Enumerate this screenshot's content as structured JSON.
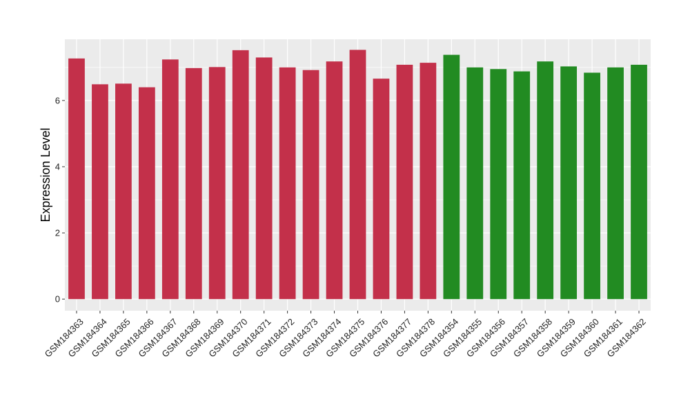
{
  "chart_data": {
    "type": "bar",
    "title": "",
    "xlabel": "",
    "ylabel": "Expression Level",
    "ylim": [
      -0.35,
      7.85
    ],
    "yticks": [
      0,
      2,
      4,
      6
    ],
    "grid": true,
    "legend": "none",
    "colors": {
      "group_a": "#C3304A",
      "group_b": "#228B22",
      "panel": "#EBEBEB",
      "gridline": "#FFFFFF"
    },
    "categories": [
      "GSM184363",
      "GSM184364",
      "GSM184365",
      "GSM184366",
      "GSM184367",
      "GSM184368",
      "GSM184369",
      "GSM184370",
      "GSM184371",
      "GSM184372",
      "GSM184373",
      "GSM184374",
      "GSM184375",
      "GSM184376",
      "GSM184377",
      "GSM184378",
      "GSM184354",
      "GSM184355",
      "GSM184356",
      "GSM184357",
      "GSM184358",
      "GSM184359",
      "GSM184360",
      "GSM184361",
      "GSM184362"
    ],
    "values": [
      7.27,
      6.49,
      6.51,
      6.4,
      7.24,
      6.98,
      7.01,
      7.52,
      7.3,
      7.0,
      6.92,
      7.18,
      7.53,
      6.66,
      7.08,
      7.14,
      7.38,
      7.0,
      6.95,
      6.88,
      7.18,
      7.03,
      6.84,
      7.0,
      7.08
    ],
    "bar_groups": [
      "a",
      "a",
      "a",
      "a",
      "a",
      "a",
      "a",
      "a",
      "a",
      "a",
      "a",
      "a",
      "a",
      "a",
      "a",
      "a",
      "b",
      "b",
      "b",
      "b",
      "b",
      "b",
      "b",
      "b",
      "b"
    ]
  }
}
